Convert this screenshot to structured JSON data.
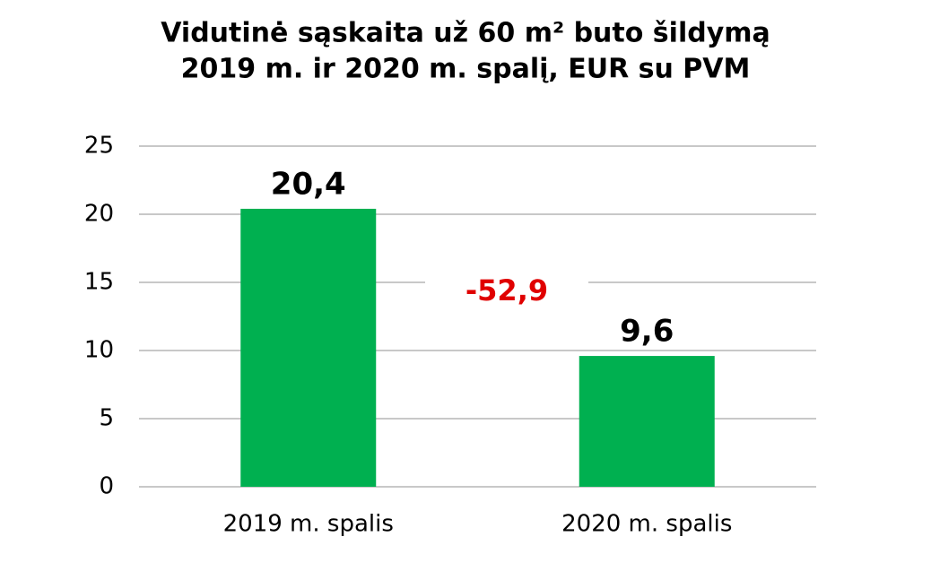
{
  "chart_data": {
    "type": "bar",
    "title": [
      "Vidutinė sąskaita už 60 m² buto šildymą",
      "2019 m. ir 2020 m. spalį, EUR su PVM"
    ],
    "categories": [
      "2019 m. spalis",
      "2020 m. spalis"
    ],
    "values": [
      20.4,
      9.6
    ],
    "value_labels": [
      "20,4",
      "9,6"
    ],
    "annotation": "-52,9",
    "color": "#00b050",
    "ylim": [
      0,
      25
    ],
    "yticks": [
      0,
      5,
      10,
      15,
      20,
      25
    ],
    "grid": true
  }
}
